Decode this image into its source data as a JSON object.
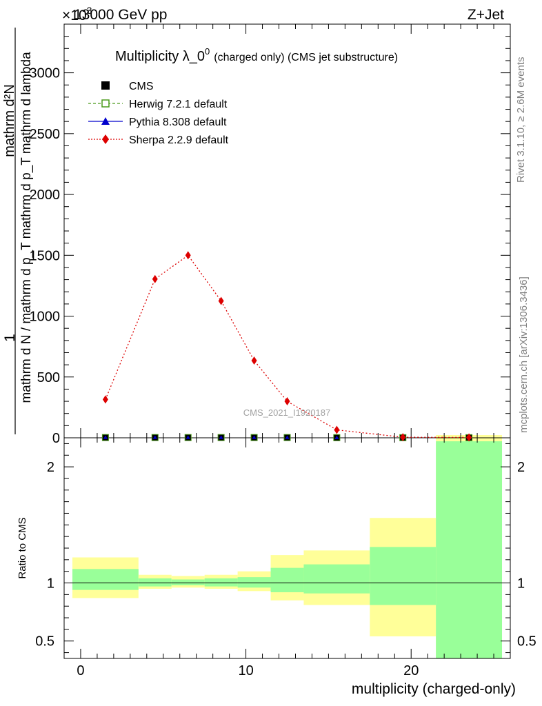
{
  "header": {
    "left": "13000 GeV pp",
    "right": "Z+Jet",
    "exponent": "×10",
    "exponent_power": "3"
  },
  "side_texts": {
    "rivet": "Rivet 3.1.10, ≥ 2.6M events",
    "mcplots": "mcplots.cern.ch [arXiv:1306.3436]"
  },
  "watermark": "CMS_2021_I1920187",
  "chart_data": [
    {
      "type": "line",
      "title": "Multiplicity λ_0",
      "title_sup": "0",
      "title_suffix": "(charged only) (CMS jet substructure)",
      "ylabel_numerator": "1",
      "ylabel_denominator": "mathrm d N / mathrm d p_T mathrm d p_T mathrm d lambda",
      "ylabel_top": "mathrm d²N",
      "ylim": [
        0,
        3400
      ],
      "xlim": [
        -1,
        26
      ],
      "y_ticks": [
        {
          "v": 0,
          "label": "0"
        },
        {
          "v": 500,
          "label": "500"
        },
        {
          "v": 1000,
          "label": "1000"
        },
        {
          "v": 1500,
          "label": "1500"
        },
        {
          "v": 2000,
          "label": "2000"
        },
        {
          "v": 2500,
          "label": "2500"
        },
        {
          "v": 3000,
          "label": "3000"
        }
      ],
      "legend": [
        {
          "name": "CMS",
          "color": "#000000",
          "marker": "square",
          "line": "none"
        },
        {
          "name": "Herwig 7.2.1 default",
          "color": "#4a9a1a",
          "marker": "open-square",
          "line": "dashed"
        },
        {
          "name": "Pythia 8.308 default",
          "color": "#0000cc",
          "marker": "triangle",
          "line": "solid"
        },
        {
          "name": "Sherpa 2.2.9 default",
          "color": "#dd0000",
          "marker": "diamond",
          "line": "dotted"
        }
      ],
      "series": [
        {
          "name": "Sherpa 2.2.9 default",
          "x": [
            1.5,
            4.5,
            6.5,
            8.5,
            10.5,
            12.5,
            15.5,
            19.5,
            23.5
          ],
          "values": [
            315,
            1305,
            1500,
            1125,
            635,
            300,
            65,
            5,
            3
          ]
        },
        {
          "name": "CMS",
          "x": [
            1.5,
            4.5,
            6.5,
            8.5,
            10.5,
            12.5,
            15.5,
            19.5,
            23.5
          ],
          "values": [
            2,
            2,
            2,
            2,
            2,
            2,
            1,
            1,
            1
          ]
        }
      ]
    },
    {
      "type": "area",
      "ylabel": "Ratio to CMS",
      "xlabel": "multiplicity (charged-only)",
      "ylim": [
        0.35,
        2.25
      ],
      "xlim": [
        -1,
        26
      ],
      "x_ticks": [
        {
          "v": 0,
          "label": "0"
        },
        {
          "v": 10,
          "label": "10"
        },
        {
          "v": 20,
          "label": "20"
        }
      ],
      "y_ticks": [
        {
          "v": 0.5,
          "label": "0.5"
        },
        {
          "v": 1,
          "label": "1"
        },
        {
          "v": 2,
          "label": "2"
        }
      ],
      "bands": [
        {
          "x0": -0.5,
          "x1": 3.5,
          "yellow": [
            0.87,
            1.22
          ],
          "green": [
            0.94,
            1.12
          ]
        },
        {
          "x0": 3.5,
          "x1": 5.5,
          "yellow": [
            0.95,
            1.07
          ],
          "green": [
            0.97,
            1.04
          ]
        },
        {
          "x0": 5.5,
          "x1": 7.5,
          "yellow": [
            0.96,
            1.06
          ],
          "green": [
            0.98,
            1.03
          ]
        },
        {
          "x0": 7.5,
          "x1": 9.5,
          "yellow": [
            0.95,
            1.07
          ],
          "green": [
            0.97,
            1.04
          ]
        },
        {
          "x0": 9.5,
          "x1": 11.5,
          "yellow": [
            0.93,
            1.1
          ],
          "green": [
            0.96,
            1.05
          ]
        },
        {
          "x0": 11.5,
          "x1": 13.5,
          "yellow": [
            0.85,
            1.24
          ],
          "green": [
            0.92,
            1.13
          ]
        },
        {
          "x0": 13.5,
          "x1": 17.5,
          "yellow": [
            0.81,
            1.28
          ],
          "green": [
            0.91,
            1.16
          ]
        },
        {
          "x0": 17.5,
          "x1": 21.5,
          "yellow": [
            0.54,
            1.56
          ],
          "green": [
            0.81,
            1.31
          ]
        },
        {
          "x0": 21.5,
          "x1": 25.5,
          "yellow": [
            0.35,
            2.25
          ],
          "green": [
            0.35,
            2.22
          ]
        }
      ]
    }
  ]
}
